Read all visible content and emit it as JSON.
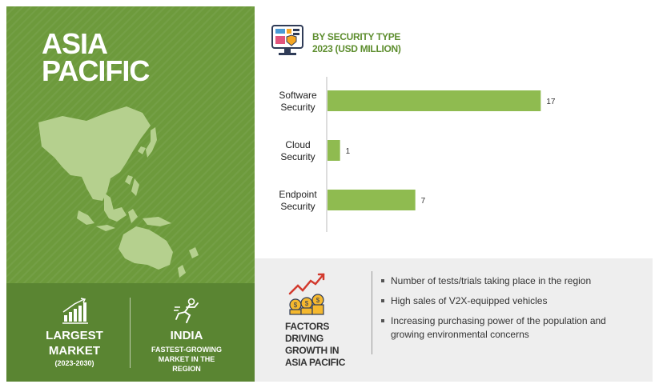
{
  "region": {
    "title_line1": "ASIA",
    "title_line2": "PACIFIC"
  },
  "stats": {
    "largest": {
      "line1": "LARGEST",
      "line2": "MARKET",
      "period": "(2023-2030)"
    },
    "fastest": {
      "country": "INDIA",
      "line1": "FASTEST-GROWING",
      "line2": "MARKET IN THE",
      "line3": "REGION"
    }
  },
  "chart_header": {
    "line1": "BY SECURITY TYPE",
    "line2": "2023 (USD MILLION)"
  },
  "chart_data": {
    "type": "bar",
    "orientation": "horizontal",
    "title": "BY SECURITY TYPE 2023 (USD MILLION)",
    "categories": [
      [
        "Software",
        "Security"
      ],
      [
        "Cloud",
        "Security"
      ],
      [
        "Endpoint",
        "Security"
      ]
    ],
    "values": [
      17,
      1,
      7
    ],
    "xlim": [
      0,
      21
    ],
    "bar_color": "#8fbb50",
    "grid": false,
    "data_labels": true
  },
  "factors": {
    "title_lines": [
      "FACTORS",
      "DRIVING",
      "GROWTH IN",
      "ASIA PACIFIC"
    ],
    "items": [
      "Number of tests/trials taking place in the region",
      "High sales of V2X-equipped vehicles",
      "Increasing purchasing power of the population and growing environmental concerns"
    ]
  },
  "colors": {
    "panel_green": "#6d9a3c",
    "panel_green_dark": "#5a8532",
    "accent_green": "#5e8e2f",
    "bar_green": "#8fbb50",
    "map_fill": "#b5d08e"
  },
  "icons": {
    "header": "security-monitor-icon",
    "largest": "bar-growth-icon",
    "fastest": "runner-icon",
    "factors": "coins-growth-icon"
  }
}
